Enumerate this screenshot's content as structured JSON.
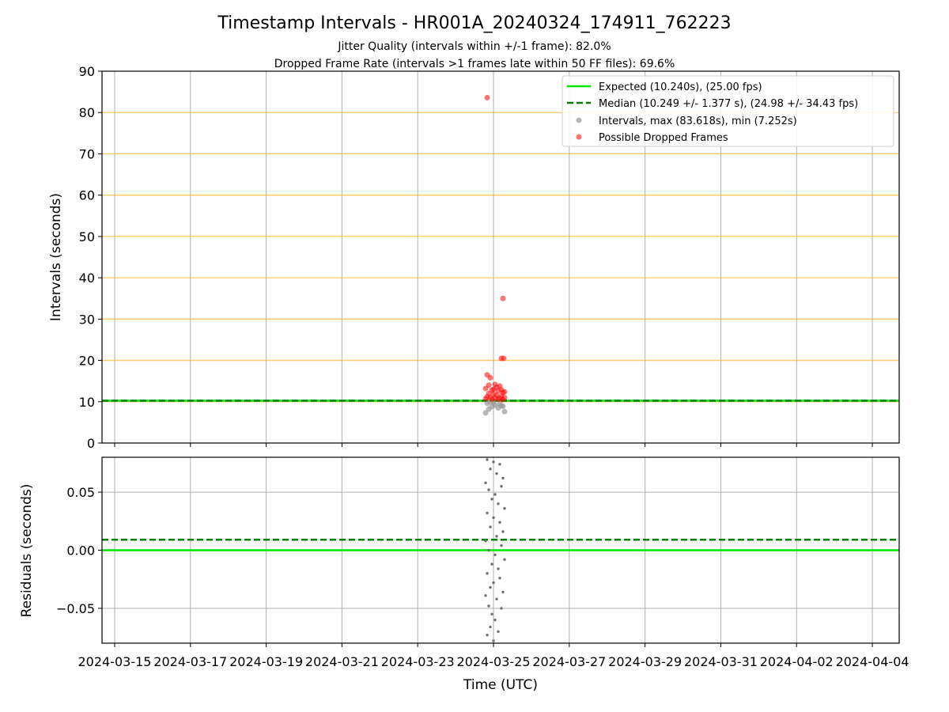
{
  "chart_data": [
    {
      "type": "scatter",
      "title": "Timestamp Intervals - HR001A_20240324_174911_762223",
      "subtitle_lines": [
        "Jitter Quality (intervals within +/-1 frame): 82.0%",
        "Dropped Frame Rate (intervals >1 frames late within 50 FF files): 69.6%"
      ],
      "ylabel": "Intervals (seconds)",
      "ylim": [
        0,
        90
      ],
      "yticks": [
        0,
        10,
        20,
        30,
        40,
        50,
        60,
        70,
        80,
        90
      ],
      "xlim": [
        "2024-03-14T16:00",
        "2024-04-04T17:00"
      ],
      "grid": {
        "y": "orange",
        "x": "gray"
      },
      "legend_position": "top-right",
      "legend": [
        "Expected (10.240s), (25.00 fps)",
        "Median (10.249 +/- 1.377 s), (24.98 +/- 34.43 fps)",
        "Intervals, max (83.618s), min (7.252s)",
        "Possible Dropped Frames"
      ],
      "expected_interval": 10.24,
      "median_interval": 10.249,
      "interval_max": 83.618,
      "interval_min": 7.252,
      "colors": {
        "expected": "#00e600",
        "median": "#008000",
        "intervals": "#999999",
        "dropped": "#ff0000",
        "y_grid": "#ffa500"
      },
      "series": [
        {
          "name": "Possible Dropped Frames",
          "points": [
            {
              "x": "2024-03-24T20:00",
              "y": 83.6
            },
            {
              "x": "2024-03-25T06:00",
              "y": 35.0
            },
            {
              "x": "2024-03-25T05:00",
              "y": 20.5
            },
            {
              "x": "2024-03-25T06:30",
              "y": 20.5
            },
            {
              "x": "2024-03-24T20:00",
              "y": 16.5
            },
            {
              "x": "2024-03-24T22:00",
              "y": 15.8
            },
            {
              "x": "2024-03-25T01:00",
              "y": 14.2
            },
            {
              "x": "2024-03-25T04:00",
              "y": 13.8
            },
            {
              "x": "2024-03-24T19:00",
              "y": 13.2
            },
            {
              "x": "2024-03-24T23:00",
              "y": 12.8
            },
            {
              "x": "2024-03-25T03:00",
              "y": 12.6
            },
            {
              "x": "2024-03-25T06:00",
              "y": 12.2
            },
            {
              "x": "2024-03-24T21:00",
              "y": 12.0
            },
            {
              "x": "2024-03-25T00:00",
              "y": 11.8
            },
            {
              "x": "2024-03-25T02:00",
              "y": 11.6
            },
            {
              "x": "2024-03-25T05:00",
              "y": 11.4
            },
            {
              "x": "2024-03-24T20:00",
              "y": 11.2
            },
            {
              "x": "2024-03-24T22:00",
              "y": 11.0
            },
            {
              "x": "2024-03-25T01:00",
              "y": 10.9
            },
            {
              "x": "2024-03-25T04:00",
              "y": 10.8
            },
            {
              "x": "2024-03-25T07:00",
              "y": 11.0
            },
            {
              "x": "2024-03-24T19:00",
              "y": 10.7
            },
            {
              "x": "2024-03-24T23:00",
              "y": 10.6
            },
            {
              "x": "2024-03-25T03:00",
              "y": 10.6
            },
            {
              "x": "2024-03-25T06:00",
              "y": 10.5
            },
            {
              "x": "2024-03-25T00:00",
              "y": 13.0
            },
            {
              "x": "2024-03-25T02:00",
              "y": 13.5
            },
            {
              "x": "2024-03-24T21:00",
              "y": 14.0
            },
            {
              "x": "2024-03-25T05:00",
              "y": 12.9
            },
            {
              "x": "2024-03-25T07:00",
              "y": 12.4
            }
          ]
        },
        {
          "name": "Intervals",
          "points": [
            {
              "x": "2024-03-24T19:00",
              "y": 7.3
            },
            {
              "x": "2024-03-24T21:00",
              "y": 8.2
            },
            {
              "x": "2024-03-24T23:00",
              "y": 8.8
            },
            {
              "x": "2024-03-25T01:00",
              "y": 9.2
            },
            {
              "x": "2024-03-25T03:00",
              "y": 8.5
            },
            {
              "x": "2024-03-25T05:00",
              "y": 9.0
            },
            {
              "x": "2024-03-25T07:00",
              "y": 7.6
            },
            {
              "x": "2024-03-24T20:00",
              "y": 9.6
            },
            {
              "x": "2024-03-25T00:00",
              "y": 9.8
            },
            {
              "x": "2024-03-25T04:00",
              "y": 9.5
            },
            {
              "x": "2024-03-25T06:00",
              "y": 8.9
            },
            {
              "x": "2024-03-24T22:00",
              "y": 9.9
            }
          ]
        }
      ]
    },
    {
      "type": "scatter",
      "ylabel": "Residuals (seconds)",
      "xlabel": "Time (UTC)",
      "ylim": [
        -0.08,
        0.08
      ],
      "yticks": [
        -0.05,
        0.0,
        0.05
      ],
      "ytick_labels": [
        "−0.05",
        "0.00",
        "0.05"
      ],
      "xticks": [
        "2024-03-15",
        "2024-03-17",
        "2024-03-19",
        "2024-03-21",
        "2024-03-23",
        "2024-03-25",
        "2024-03-27",
        "2024-03-29",
        "2024-03-31",
        "2024-04-02",
        "2024-04-04"
      ],
      "xlim": [
        "2024-03-14T16:00",
        "2024-04-04T17:00"
      ],
      "grid": true,
      "expected_residual": 0.0,
      "median_residual": 0.009,
      "colors": {
        "expected": "#00e600",
        "median": "#008000",
        "residuals": "#707070",
        "grid": "#b0b0b0"
      },
      "series": [
        {
          "name": "Residuals",
          "points": [
            {
              "x": "2024-03-24T20:00",
              "y": 0.078
            },
            {
              "x": "2024-03-25T00:00",
              "y": 0.076
            },
            {
              "x": "2024-03-25T04:00",
              "y": 0.074
            },
            {
              "x": "2024-03-24T22:00",
              "y": 0.07
            },
            {
              "x": "2024-03-25T02:00",
              "y": 0.066
            },
            {
              "x": "2024-03-25T06:00",
              "y": 0.062
            },
            {
              "x": "2024-03-24T19:00",
              "y": 0.058
            },
            {
              "x": "2024-03-25T05:00",
              "y": 0.055
            },
            {
              "x": "2024-03-24T21:00",
              "y": 0.052
            },
            {
              "x": "2024-03-25T01:00",
              "y": 0.048
            },
            {
              "x": "2024-03-24T23:00",
              "y": 0.044
            },
            {
              "x": "2024-03-25T03:00",
              "y": 0.04
            },
            {
              "x": "2024-03-25T07:00",
              "y": 0.036
            },
            {
              "x": "2024-03-24T20:00",
              "y": 0.032
            },
            {
              "x": "2024-03-25T00:00",
              "y": 0.028
            },
            {
              "x": "2024-03-25T04:00",
              "y": 0.024
            },
            {
              "x": "2024-03-24T22:00",
              "y": 0.02
            },
            {
              "x": "2024-03-25T06:00",
              "y": 0.016
            },
            {
              "x": "2024-03-25T02:00",
              "y": 0.012
            },
            {
              "x": "2024-03-24T19:00",
              "y": 0.008
            },
            {
              "x": "2024-03-25T05:00",
              "y": 0.004
            },
            {
              "x": "2024-03-24T21:00",
              "y": 0.0
            },
            {
              "x": "2024-03-25T01:00",
              "y": -0.004
            },
            {
              "x": "2024-03-25T07:00",
              "y": -0.008
            },
            {
              "x": "2024-03-24T23:00",
              "y": -0.012
            },
            {
              "x": "2024-03-25T03:00",
              "y": -0.016
            },
            {
              "x": "2024-03-24T20:00",
              "y": -0.02
            },
            {
              "x": "2024-03-25T04:00",
              "y": -0.024
            },
            {
              "x": "2024-03-25T00:00",
              "y": -0.028
            },
            {
              "x": "2024-03-24T22:00",
              "y": -0.032
            },
            {
              "x": "2024-03-25T06:00",
              "y": -0.036
            },
            {
              "x": "2024-03-24T19:00",
              "y": -0.039
            },
            {
              "x": "2024-03-25T02:00",
              "y": -0.042
            },
            {
              "x": "2024-03-24T21:00",
              "y": -0.048
            },
            {
              "x": "2024-03-25T05:00",
              "y": -0.05
            },
            {
              "x": "2024-03-24T23:00",
              "y": -0.055
            },
            {
              "x": "2024-03-25T01:00",
              "y": -0.06
            },
            {
              "x": "2024-03-24T22:00",
              "y": -0.066
            },
            {
              "x": "2024-03-25T03:00",
              "y": -0.07
            },
            {
              "x": "2024-03-24T20:00",
              "y": -0.073
            },
            {
              "x": "2024-03-25T00:00",
              "y": -0.078
            }
          ]
        }
      ]
    }
  ]
}
